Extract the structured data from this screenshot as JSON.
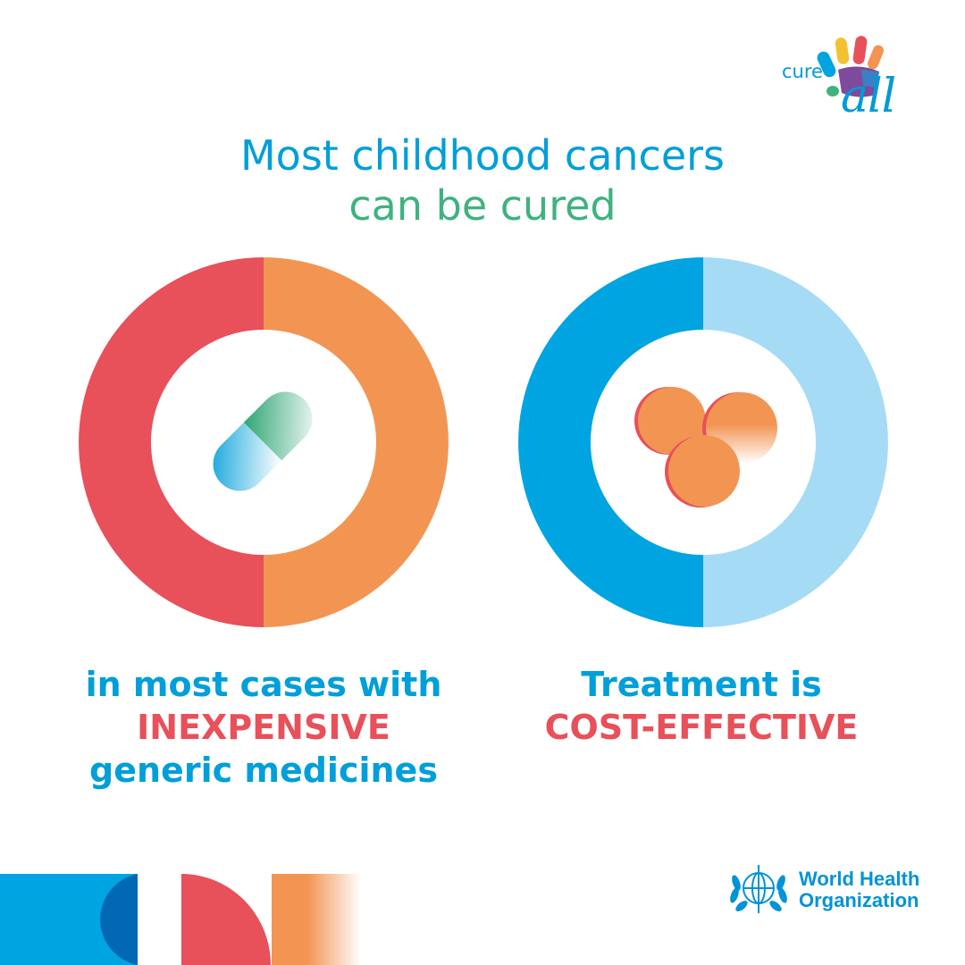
{
  "logo": {
    "cure": "cure",
    "all": "all"
  },
  "headline": {
    "line1": "Most childhood cancers",
    "line2": "can be cured"
  },
  "left_panel": {
    "line1": "in most cases with",
    "line2": "INEXPENSIVE",
    "line3": "generic medicines",
    "icon": "capsule-icon",
    "colors": {
      "ring_left": "#e8505a",
      "ring_right": "#f29553"
    }
  },
  "right_panel": {
    "line1": "Treatment is",
    "line2": "COST-EFFECTIVE",
    "icon": "tablets-icon",
    "colors": {
      "ring_left": "#00a4e0",
      "ring_right": "#a6dbf5"
    }
  },
  "footer": {
    "org_line1": "World Health",
    "org_line2": "Organization"
  },
  "colors": {
    "blue": "#009fd9",
    "green": "#3fb27f",
    "red": "#e8505a",
    "orange": "#f29553"
  }
}
